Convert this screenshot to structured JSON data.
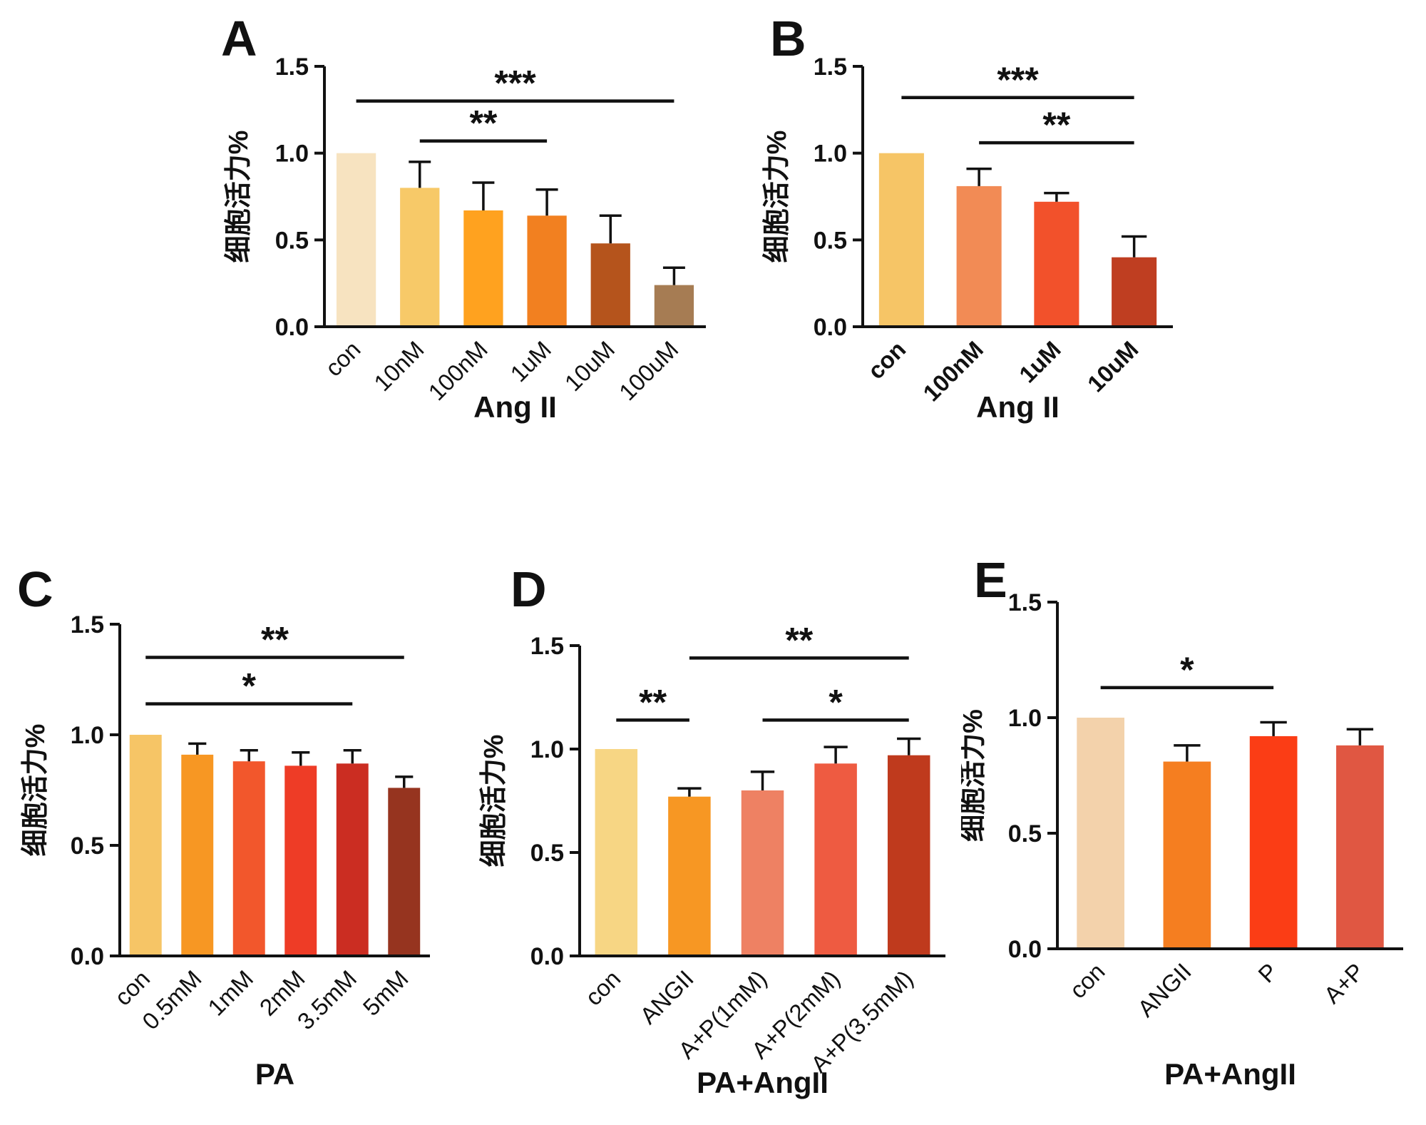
{
  "figure": {
    "background": "#ffffff",
    "axis_color": "#111111",
    "description_labels": {
      "panel_a": "A",
      "panel_b": "B",
      "panel_c": "C",
      "panel_d": "D",
      "panel_e": "E"
    }
  },
  "chart_data": [
    {
      "id": "A",
      "type": "bar",
      "panel_label": "A",
      "xlabel": "Ang II",
      "ylabel": "细胞活力%",
      "ylim": [
        0,
        1.5
      ],
      "yticks": [
        0.0,
        0.5,
        1.0,
        1.5
      ],
      "grid": false,
      "legend": false,
      "error_bars": "upper",
      "categories": [
        "con",
        "10nM",
        "100nM",
        "1uM",
        "10uM",
        "100uM"
      ],
      "values": [
        1.0,
        0.8,
        0.67,
        0.64,
        0.48,
        0.24
      ],
      "errors": [
        0,
        0.15,
        0.16,
        0.15,
        0.16,
        0.1
      ],
      "bar_colors": [
        "#f7e3c0",
        "#f7c968",
        "#ffa21f",
        "#f28020",
        "#b5541c",
        "#a67c53"
      ],
      "xtick_bold": false,
      "significance": [
        {
          "label": "***",
          "from": 0,
          "to": 5,
          "y": 1.3
        },
        {
          "label": "**",
          "from": 1,
          "to": 3,
          "y": 1.07
        }
      ]
    },
    {
      "id": "B",
      "type": "bar",
      "panel_label": "B",
      "xlabel": "Ang II",
      "ylabel": "细胞活力%",
      "ylim": [
        0,
        1.5
      ],
      "yticks": [
        0.0,
        0.5,
        1.0,
        1.5
      ],
      "grid": false,
      "legend": false,
      "error_bars": "upper",
      "categories": [
        "con",
        "100nM",
        "1uM",
        "10uM"
      ],
      "values": [
        1.0,
        0.81,
        0.72,
        0.4
      ],
      "errors": [
        0,
        0.1,
        0.05,
        0.12
      ],
      "bar_colors": [
        "#f6c566",
        "#f28b55",
        "#f2512b",
        "#bf3e21"
      ],
      "xtick_bold": true,
      "significance": [
        {
          "label": "***",
          "from": 0,
          "to": 3,
          "y": 1.32
        },
        {
          "label": "**",
          "from": 1,
          "to": 3,
          "y": 1.06
        }
      ]
    },
    {
      "id": "C",
      "type": "bar",
      "panel_label": "C",
      "xlabel": "PA",
      "ylabel": "细胞活力%",
      "ylim": [
        0,
        1.5
      ],
      "yticks": [
        0.0,
        0.5,
        1.0,
        1.5
      ],
      "grid": false,
      "legend": false,
      "error_bars": "upper",
      "categories": [
        "con",
        "0.5mM",
        "1mM",
        "2mM",
        "3.5mM",
        "5mM"
      ],
      "values": [
        1.0,
        0.91,
        0.88,
        0.86,
        0.87,
        0.76
      ],
      "errors": [
        0,
        0.05,
        0.05,
        0.06,
        0.06,
        0.05
      ],
      "bar_colors": [
        "#f6c566",
        "#f79723",
        "#f2572c",
        "#ee3c26",
        "#cb2d22",
        "#96341f"
      ],
      "xtick_bold": false,
      "significance": [
        {
          "label": "**",
          "from": 0,
          "to": 5,
          "y": 1.35
        },
        {
          "label": "*",
          "from": 0,
          "to": 4,
          "y": 1.14
        }
      ]
    },
    {
      "id": "D",
      "type": "bar",
      "panel_label": "D",
      "xlabel": "PA+AngII",
      "ylabel": "细胞活力%",
      "ylim": [
        0,
        1.5
      ],
      "yticks": [
        0.0,
        0.5,
        1.0,
        1.5
      ],
      "grid": false,
      "legend": false,
      "error_bars": "upper",
      "categories": [
        "con",
        "ANGII",
        "A+P(1mM)",
        "A+P(2mM)",
        "A+P(3.5mM)"
      ],
      "values": [
        1.0,
        0.77,
        0.8,
        0.93,
        0.97
      ],
      "errors": [
        0,
        0.04,
        0.09,
        0.08,
        0.08
      ],
      "bar_colors": [
        "#f7d684",
        "#f79723",
        "#ee8163",
        "#ee5b41",
        "#bf3a1d"
      ],
      "xtick_bold": false,
      "significance": [
        {
          "label": "**",
          "from": 1,
          "to": 4,
          "y": 1.44
        },
        {
          "label": "**",
          "from": 0,
          "to": 1,
          "y": 1.14
        },
        {
          "label": "*",
          "from": 2,
          "to": 4,
          "y": 1.14
        }
      ]
    },
    {
      "id": "E",
      "type": "bar",
      "panel_label": "E",
      "xlabel": "PA+AngII",
      "ylabel": "细胞活力%",
      "ylim": [
        0,
        1.5
      ],
      "yticks": [
        0.0,
        0.5,
        1.0,
        1.5
      ],
      "grid": false,
      "legend": false,
      "error_bars": "upper",
      "categories": [
        "con",
        "ANGII",
        "P",
        "A+P"
      ],
      "values": [
        1.0,
        0.81,
        0.92,
        0.88
      ],
      "errors": [
        0,
        0.07,
        0.06,
        0.07
      ],
      "bar_colors": [
        "#f3d2ab",
        "#f57e20",
        "#fb3d15",
        "#e05742"
      ],
      "xtick_bold": false,
      "significance": [
        {
          "label": "*",
          "from": 0,
          "to": 2,
          "y": 1.13
        }
      ]
    }
  ]
}
